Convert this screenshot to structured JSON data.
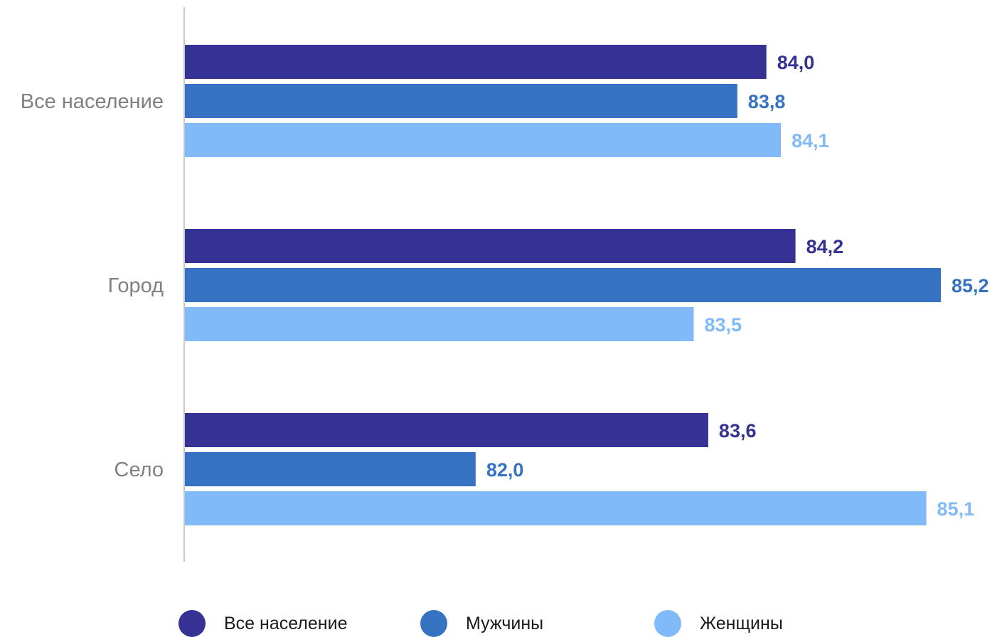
{
  "chart_data": {
    "type": "bar",
    "orientation": "horizontal",
    "categories": [
      "Все население",
      "Город",
      "Село"
    ],
    "series": [
      {
        "name": "Все население",
        "color": "#353195",
        "values": [
          84.0,
          84.2,
          83.6
        ],
        "labels": [
          "84,0",
          "84,2",
          "83,6"
        ]
      },
      {
        "name": "Мужчины",
        "color": "#3572C2",
        "values": [
          83.8,
          85.2,
          82.0
        ],
        "labels": [
          "83,8",
          "85,2",
          "82,0"
        ]
      },
      {
        "name": "Женщины",
        "color": "#80BAF9",
        "values": [
          84.1,
          83.5,
          85.1
        ],
        "labels": [
          "84,1",
          "83,5",
          "85,1"
        ]
      }
    ],
    "xlim": [
      80,
      85.2
    ],
    "grid": false,
    "legend_position": "bottom"
  }
}
